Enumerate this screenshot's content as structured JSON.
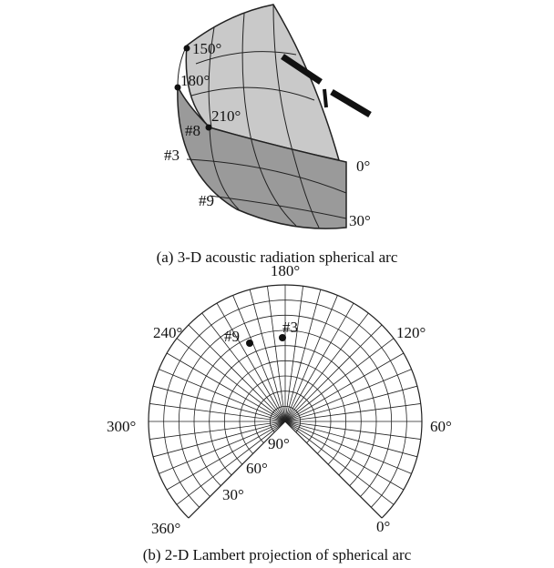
{
  "panel_a": {
    "angle_labels": [
      "150°",
      "180°",
      "210°",
      "0°",
      "30°"
    ],
    "point_labels": [
      "#8",
      "#3",
      "#9"
    ],
    "caption": "(a) 3-D acoustic radiation spherical arc"
  },
  "panel_b": {
    "azimuth_labels": [
      "180°",
      "240°",
      "120°",
      "300°",
      "60°",
      "360°",
      "0°"
    ],
    "elevation_labels": [
      "90°",
      "60°",
      "30°"
    ],
    "point_labels": [
      "#9",
      "#3"
    ],
    "caption": "(b) 2-D Lambert projection of spherical arc"
  }
}
